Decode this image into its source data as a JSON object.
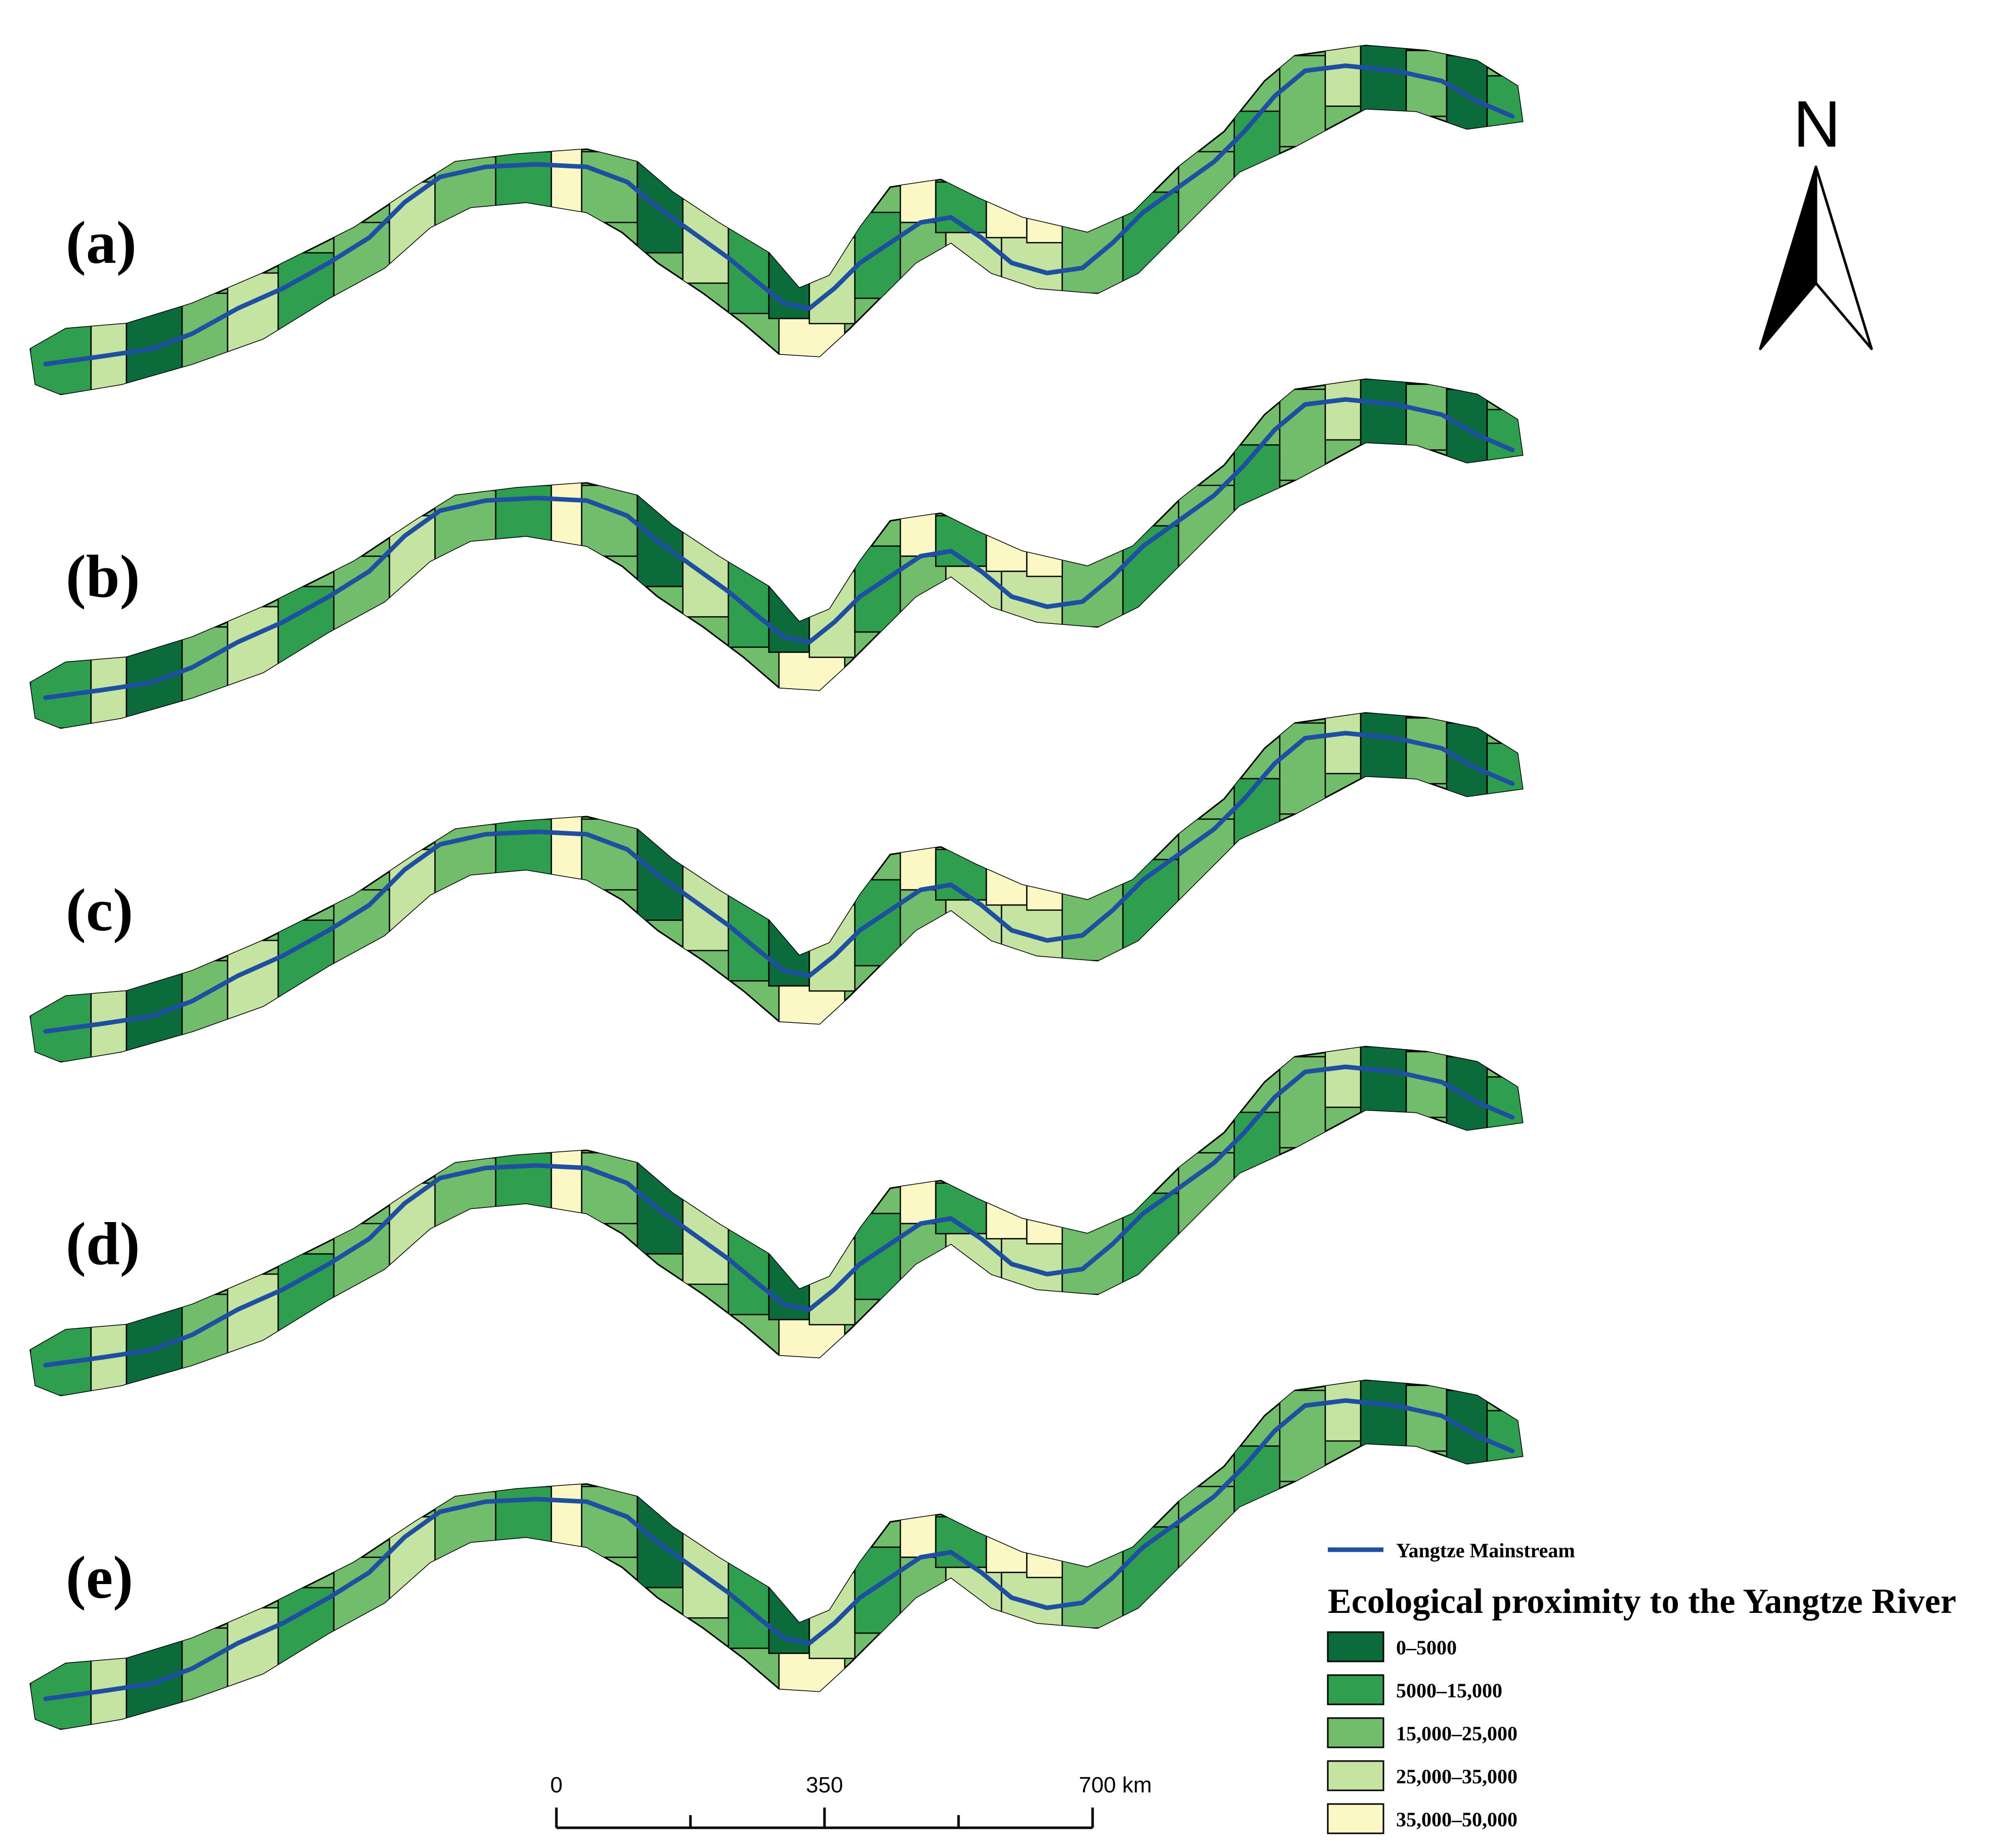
{
  "panels": [
    {
      "label": "(a)"
    },
    {
      "label": "(b)"
    },
    {
      "label": "(c)"
    },
    {
      "label": "(d)"
    },
    {
      "label": "(e)"
    }
  ],
  "north_arrow": {
    "letter": "N"
  },
  "scale_bar": {
    "ticks": [
      "0",
      "350",
      "700 km"
    ]
  },
  "legend": {
    "river_label": "Yangtze Mainstream",
    "river_color": "#1f4fa0",
    "title": "Ecological proximity to the Yangtze River",
    "classes": [
      {
        "label": "0–5000",
        "color": "#0b6b3a"
      },
      {
        "label": "5000–15,000",
        "color": "#2f9e4f"
      },
      {
        "label": "15,000–25,000",
        "color": "#72bd6c"
      },
      {
        "label": "25,000–35,000",
        "color": "#c5e3a1"
      },
      {
        "label": "35,000–50,000",
        "color": "#fbf8c5"
      }
    ]
  }
}
